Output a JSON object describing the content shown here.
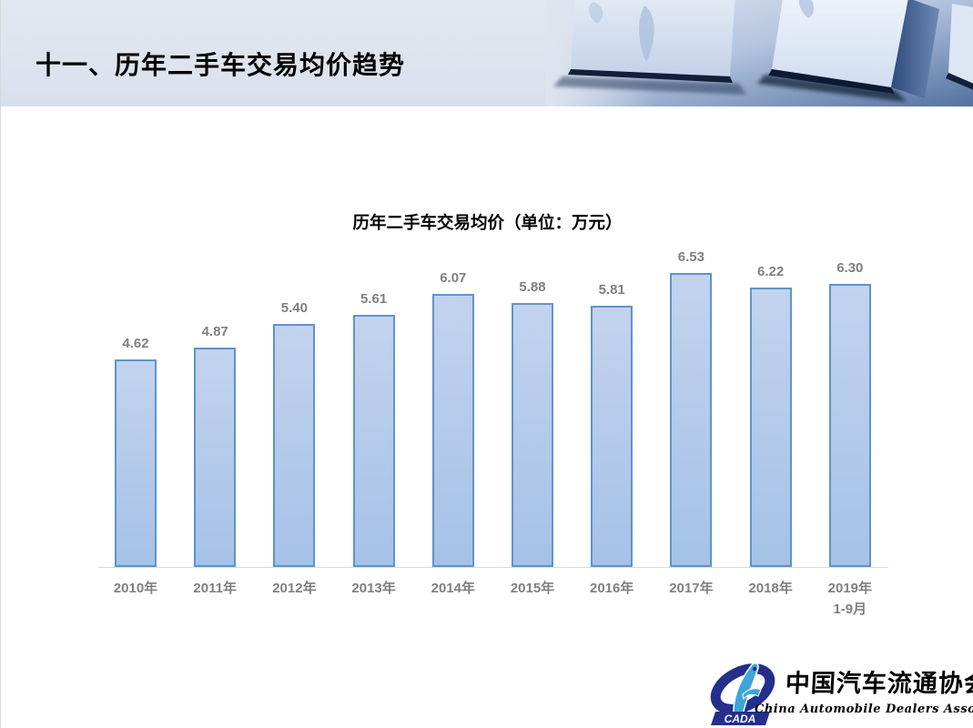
{
  "slide": {
    "header": {
      "title": "十一、历年二手车交易均价趋势"
    },
    "footer_logo": {
      "cada_acronym": "CADA",
      "org_name_cn": "中国汽车流通协会",
      "org_name_en": "China Automobile Dealers  Association"
    }
  },
  "chart_data": {
    "type": "bar",
    "title": "历年二手车交易均价（单位：万元）",
    "categories": [
      "2010年",
      "2011年",
      "2012年",
      "2013年",
      "2014年",
      "2015年",
      "2016年",
      "2017年",
      "2018年",
      "2019年\n1-9月"
    ],
    "values": [
      4.62,
      4.87,
      5.4,
      5.61,
      6.07,
      5.88,
      5.81,
      6.53,
      6.22,
      6.3
    ],
    "value_labels": [
      "4.62",
      "4.87",
      "5.40",
      "5.61",
      "6.07",
      "5.88",
      "5.81",
      "6.53",
      "6.22",
      "6.30"
    ],
    "xlabel": "",
    "ylabel": "",
    "ylim": [
      0,
      7
    ],
    "grid": false,
    "legend": "none",
    "colors": {
      "bar_fill_top": "#c2d3ee",
      "bar_fill_bottom": "#a5c2e7",
      "bar_border": "#5f93cb",
      "data_label": "#7f7f7f",
      "axis_line": "#d9d9d9"
    }
  }
}
